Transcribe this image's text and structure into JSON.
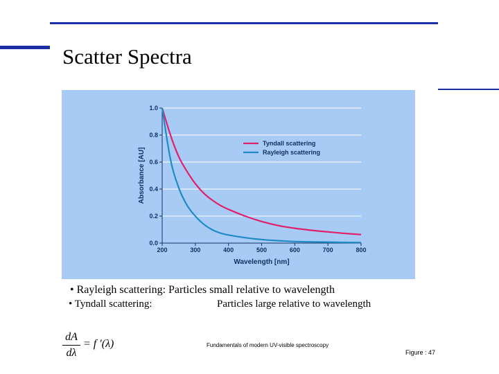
{
  "slide": {
    "title": "Scatter Spectra",
    "bullets": [
      {
        "marker": "•",
        "text": "Rayleigh scattering: Particles small relative to wavelength"
      },
      {
        "marker": "•",
        "text": "Tyndall scattering:",
        "desc": "Particles large relative to wavelength"
      }
    ],
    "formula": {
      "numerator": "dA",
      "denominator": "dλ",
      "rhs": "= f ′(λ)"
    },
    "source": "Fundamentals of modern UV-visible spectroscopy",
    "figure_label": "Figure : 47"
  },
  "colors": {
    "rule": "#1a2fa6",
    "panel": "#a8cbf5",
    "tyndall": "#e0206a",
    "rayleigh": "#1f8ac4",
    "grid": "#ffffff",
    "text": "#123060"
  },
  "chart_data": {
    "type": "line",
    "xlabel": "Wavelength [nm]",
    "ylabel": "Absorbance [AU]",
    "xlim": [
      200,
      800
    ],
    "ylim": [
      0.0,
      1.0
    ],
    "x_ticks": [
      "200",
      "300",
      "400",
      "500",
      "600",
      "700",
      "800"
    ],
    "y_ticks": [
      "0.0",
      "0.2",
      "0.4",
      "0.6",
      "0.8",
      "1.0"
    ],
    "grid": "horizontal",
    "legend_position": "upper-right",
    "series": [
      {
        "name": "Tyndall scattering",
        "x": [
          200,
          225,
          250,
          275,
          300,
          325,
          350,
          375,
          400,
          450,
          500,
          550,
          600,
          650,
          700,
          750,
          800
        ],
        "y": [
          1.0,
          0.8,
          0.64,
          0.53,
          0.44,
          0.37,
          0.32,
          0.28,
          0.25,
          0.2,
          0.16,
          0.13,
          0.11,
          0.095,
          0.083,
          0.072,
          0.063
        ]
      },
      {
        "name": "Rayleigh scattering",
        "x": [
          200,
          225,
          250,
          275,
          300,
          325,
          350,
          375,
          400,
          450,
          500,
          550,
          600,
          650,
          700,
          750,
          800
        ],
        "y": [
          1.0,
          0.62,
          0.41,
          0.28,
          0.2,
          0.14,
          0.1,
          0.075,
          0.06,
          0.04,
          0.026,
          0.018,
          0.012,
          0.009,
          0.007,
          0.005,
          0.004
        ]
      }
    ]
  }
}
